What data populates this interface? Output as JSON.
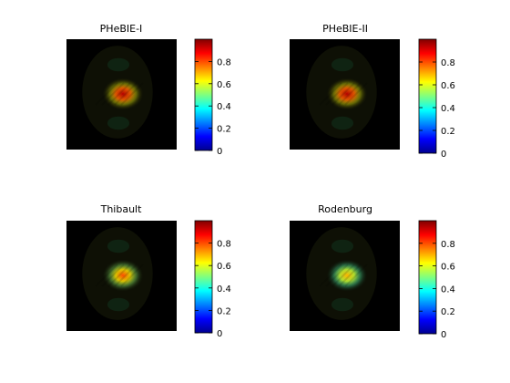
{
  "colors": {
    "background": "#ffffff",
    "image_background": "#000000",
    "colormap": "jet"
  },
  "chart_data": [
    {
      "type": "heatmap",
      "title": "PHeBIE-I",
      "colorbar": {
        "clim": [
          0,
          1
        ],
        "ticks": [
          0,
          0.2,
          0.4,
          0.6,
          0.8
        ],
        "tick_labels": [
          "0",
          "0.2",
          "0.4",
          "0.6",
          "0.8"
        ]
      },
      "peak_value": 0.95
    },
    {
      "type": "heatmap",
      "title": "PHeBIE-II",
      "colorbar": {
        "clim": [
          0,
          1
        ],
        "ticks": [
          0,
          0.2,
          0.4,
          0.6,
          0.8
        ],
        "tick_labels": [
          "0",
          "0.2",
          "0.4",
          "0.6",
          "0.8"
        ]
      },
      "peak_value": 0.95
    },
    {
      "type": "heatmap",
      "title": "Thibault",
      "colorbar": {
        "clim": [
          0,
          1
        ],
        "ticks": [
          0,
          0.2,
          0.4,
          0.6,
          0.8
        ],
        "tick_labels": [
          "0",
          "0.2",
          "0.4",
          "0.6",
          "0.8"
        ]
      },
      "peak_value": 0.8
    },
    {
      "type": "heatmap",
      "title": "Rodenburg",
      "colorbar": {
        "clim": [
          0,
          1
        ],
        "ticks": [
          0,
          0.2,
          0.4,
          0.6,
          0.8
        ],
        "tick_labels": [
          "0",
          "0.2",
          "0.4",
          "0.6",
          "0.8"
        ]
      },
      "peak_value": 0.7
    }
  ]
}
